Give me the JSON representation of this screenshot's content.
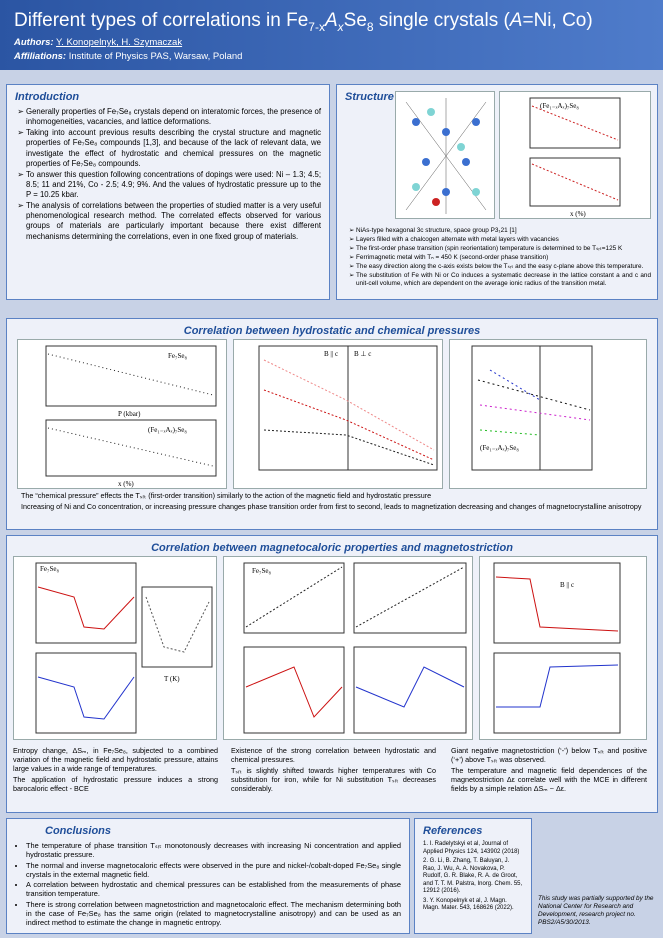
{
  "header": {
    "title": [
      "Different types of correlations in Fe",
      "7-x",
      "A",
      "x",
      "Se",
      "8",
      " single crystals (",
      "A",
      "=Ni, Co)"
    ],
    "authors_label": "Authors:",
    "authors": "Y. Konopelnyk, H. Szymaczak",
    "affiliations_label": "Affiliations:",
    "affiliations": "Institute of Physics PAS, Warsaw, Poland"
  },
  "introduction": {
    "title": "Introduction",
    "items": [
      "Generally properties of Fe₇Se₈ crystals depend on interatomic forces, the presence of inhomogeneities, vacancies, and lattice deformations.",
      "Taking into account previous results describing the crystal structure and magnetic properties of Fe₇Se₈ compounds [1,3], and because of the lack of relevant data, we investigate the effect of hydrostatic and chemical pressures on the magnetic properties of Fe₇Se₈ compounds.",
      "To answer this question following concentrations of dopings were used: Ni – 1.3; 4.5; 8.5; 11 and 21%, Co - 2.5; 4.9; 9%. And the values of hydrostatic pressure up to the P = 10.25 kbar.",
      "The analysis of correlations between the properties of studied matter is a very useful phenomenological research method. The correlated effects observed for various groups of materials are particularly important because there exist different mechanisms determining the correlations, even in one fixed group of materials."
    ]
  },
  "structure": {
    "title": "Structure",
    "figure_labels": [
      "(Fe₁₋ₓAₓ)₇Se₈",
      "x (%)"
    ],
    "items": [
      "NiAs-type hexagonal 3c structure, space group P3₁21 [1]",
      "Layers filled with a chalcogen alternate with metal layers with vacancies",
      "The first-order phase transition (spin reorientation) temperature is determined to be Tₛᵣₜ=125 K",
      "Ferrimagnetic metal with Tₙ = 450 K (second-order phase transition)",
      "The easy direction along the c-axis exists below the Tₛᵣₜ and the easy c-plane above this temperature.",
      "The substitution of Fe with Ni or Co induces a systematic decrease in the lattice constant a and c and unit-cell volume, which are dependent on the average ionic radius of the transition metal."
    ]
  },
  "hydrostatic": {
    "title": "Correlation between hydrostatic and chemical pressures",
    "figure_labels": [
      "Fe₇Se₈",
      "(Fe₁₋ₓAₓ)₇Se₈",
      "B || c",
      "B ⊥ c",
      "P (kbar)",
      "x (%)"
    ],
    "text": [
      "The “chemical pressure” effects the Tₛᵣₜ (first-order transition) similarly to the action of the magnetic field and hydrostatic pressure",
      "Increasing of Ni and Co concentration, or increasing pressure changes phase transition order from first to second, leads to magnetization decreasing and changes of magnetocrystalline anisotropy"
    ]
  },
  "magnetocaloric": {
    "title": "Correlation between magnetocaloric properties and magnetostriction",
    "figure_labels": [
      "Fe₇Se₈",
      "T (K)",
      "B || c"
    ],
    "columns": [
      [
        "Entropy change, ΔSₘ, in Fe₇Se₈, subjected to a combined variation of the magnetic field and hydrostatic pressure, attains large values in a wide range of temperatures.",
        "The application of hydrostatic pressure induces a strong barocaloric effect - BCE"
      ],
      [
        "Existence of the strong correlation between hydrostatic and chemical pressures.",
        "Tₛᵣₜ is slightly shifted towards higher temperatures with Co substitution for iron, while for Ni substitution Tₛᵣₜ decreases considerably."
      ],
      [
        "Giant negative magnetostriction (‘-’) below Tₛᵣₜ and positive (‘+’) above Tₛᵣₜ was observed.",
        "The temperature and magnetic field dependences of the magnetostriction Δε correlate well with the MCE in different fields by a simple relation ΔSₘ ~ Δε."
      ]
    ]
  },
  "conclusions": {
    "title": "Conclusions",
    "items": [
      "The temperature of phase transition Tₛᵣₜ monotonously decreases with increasing Ni concentration and applied hydrostatic pressure.",
      "The normal and inverse magnetocaloric effects were observed in the pure and nickel-/cobalt-doped Fe₇Se₈ single crystals in the external magnetic field.",
      "A correlation between hydrostatic and chemical pressures can be established from the measurements of phase transition temperature.",
      "There is strong correlation between magnetostriction and magnetocaloric effect. The mechanism determining both in the case of Fe₇Se₈ has the same origin (related to magnetocrystalline anisotropy) and can be used as an indirect method to estimate the change in magnetic entropy."
    ]
  },
  "references": {
    "title": "References",
    "items": [
      "1. I. Radelytskyi et al, Journal of Applied Physics 124, 143902 (2018)",
      "2. G. Li, B. Zhang, T. Baluyan, J. Rao, J. Wu, A. A. Novakova, P. Rudolf, G. R. Blake, R. A. de Groot, and T. T. M. Palstra, Inorg. Chem. 55, 12912 (2016).",
      "3. Y. Konopelnyk et al, J. Magn. Magn. Mater. 543, 168626 (2022)."
    ]
  },
  "funding": "This study was partially supported by the National Center for Research and Development, research project no. PBS2/A5/30/2013."
}
